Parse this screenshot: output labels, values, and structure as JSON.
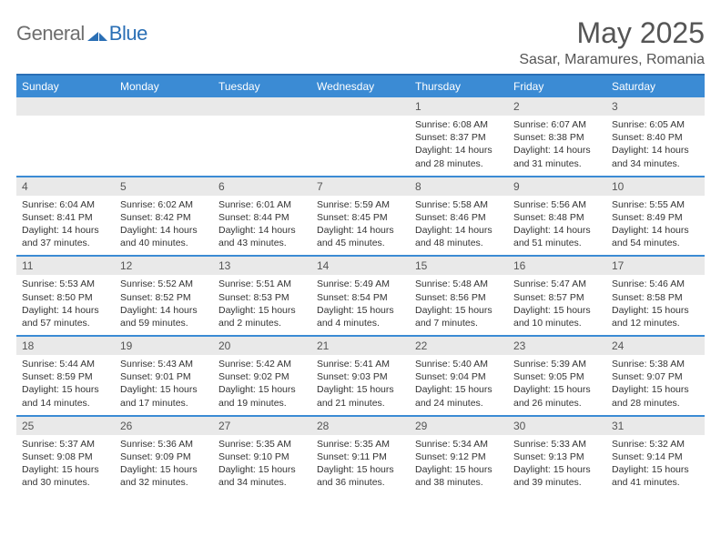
{
  "logo": {
    "general": "General",
    "blue": "Blue"
  },
  "title": "May 2025",
  "location": "Sasar, Maramures, Romania",
  "day_headers": [
    "Sunday",
    "Monday",
    "Tuesday",
    "Wednesday",
    "Thursday",
    "Friday",
    "Saturday"
  ],
  "colors": {
    "header_bg": "#3b8bd4",
    "header_border": "#2a6fb5",
    "daynum_bg": "#e9e9e9",
    "text": "#333333",
    "title_text": "#555555"
  },
  "weeks": [
    {
      "nums": [
        "",
        "",
        "",
        "",
        "1",
        "2",
        "3"
      ],
      "details": [
        "",
        "",
        "",
        "",
        "Sunrise: 6:08 AM\nSunset: 8:37 PM\nDaylight: 14 hours and 28 minutes.",
        "Sunrise: 6:07 AM\nSunset: 8:38 PM\nDaylight: 14 hours and 31 minutes.",
        "Sunrise: 6:05 AM\nSunset: 8:40 PM\nDaylight: 14 hours and 34 minutes."
      ]
    },
    {
      "nums": [
        "4",
        "5",
        "6",
        "7",
        "8",
        "9",
        "10"
      ],
      "details": [
        "Sunrise: 6:04 AM\nSunset: 8:41 PM\nDaylight: 14 hours and 37 minutes.",
        "Sunrise: 6:02 AM\nSunset: 8:42 PM\nDaylight: 14 hours and 40 minutes.",
        "Sunrise: 6:01 AM\nSunset: 8:44 PM\nDaylight: 14 hours and 43 minutes.",
        "Sunrise: 5:59 AM\nSunset: 8:45 PM\nDaylight: 14 hours and 45 minutes.",
        "Sunrise: 5:58 AM\nSunset: 8:46 PM\nDaylight: 14 hours and 48 minutes.",
        "Sunrise: 5:56 AM\nSunset: 8:48 PM\nDaylight: 14 hours and 51 minutes.",
        "Sunrise: 5:55 AM\nSunset: 8:49 PM\nDaylight: 14 hours and 54 minutes."
      ]
    },
    {
      "nums": [
        "11",
        "12",
        "13",
        "14",
        "15",
        "16",
        "17"
      ],
      "details": [
        "Sunrise: 5:53 AM\nSunset: 8:50 PM\nDaylight: 14 hours and 57 minutes.",
        "Sunrise: 5:52 AM\nSunset: 8:52 PM\nDaylight: 14 hours and 59 minutes.",
        "Sunrise: 5:51 AM\nSunset: 8:53 PM\nDaylight: 15 hours and 2 minutes.",
        "Sunrise: 5:49 AM\nSunset: 8:54 PM\nDaylight: 15 hours and 4 minutes.",
        "Sunrise: 5:48 AM\nSunset: 8:56 PM\nDaylight: 15 hours and 7 minutes.",
        "Sunrise: 5:47 AM\nSunset: 8:57 PM\nDaylight: 15 hours and 10 minutes.",
        "Sunrise: 5:46 AM\nSunset: 8:58 PM\nDaylight: 15 hours and 12 minutes."
      ]
    },
    {
      "nums": [
        "18",
        "19",
        "20",
        "21",
        "22",
        "23",
        "24"
      ],
      "details": [
        "Sunrise: 5:44 AM\nSunset: 8:59 PM\nDaylight: 15 hours and 14 minutes.",
        "Sunrise: 5:43 AM\nSunset: 9:01 PM\nDaylight: 15 hours and 17 minutes.",
        "Sunrise: 5:42 AM\nSunset: 9:02 PM\nDaylight: 15 hours and 19 minutes.",
        "Sunrise: 5:41 AM\nSunset: 9:03 PM\nDaylight: 15 hours and 21 minutes.",
        "Sunrise: 5:40 AM\nSunset: 9:04 PM\nDaylight: 15 hours and 24 minutes.",
        "Sunrise: 5:39 AM\nSunset: 9:05 PM\nDaylight: 15 hours and 26 minutes.",
        "Sunrise: 5:38 AM\nSunset: 9:07 PM\nDaylight: 15 hours and 28 minutes."
      ]
    },
    {
      "nums": [
        "25",
        "26",
        "27",
        "28",
        "29",
        "30",
        "31"
      ],
      "details": [
        "Sunrise: 5:37 AM\nSunset: 9:08 PM\nDaylight: 15 hours and 30 minutes.",
        "Sunrise: 5:36 AM\nSunset: 9:09 PM\nDaylight: 15 hours and 32 minutes.",
        "Sunrise: 5:35 AM\nSunset: 9:10 PM\nDaylight: 15 hours and 34 minutes.",
        "Sunrise: 5:35 AM\nSunset: 9:11 PM\nDaylight: 15 hours and 36 minutes.",
        "Sunrise: 5:34 AM\nSunset: 9:12 PM\nDaylight: 15 hours and 38 minutes.",
        "Sunrise: 5:33 AM\nSunset: 9:13 PM\nDaylight: 15 hours and 39 minutes.",
        "Sunrise: 5:32 AM\nSunset: 9:14 PM\nDaylight: 15 hours and 41 minutes."
      ]
    }
  ]
}
